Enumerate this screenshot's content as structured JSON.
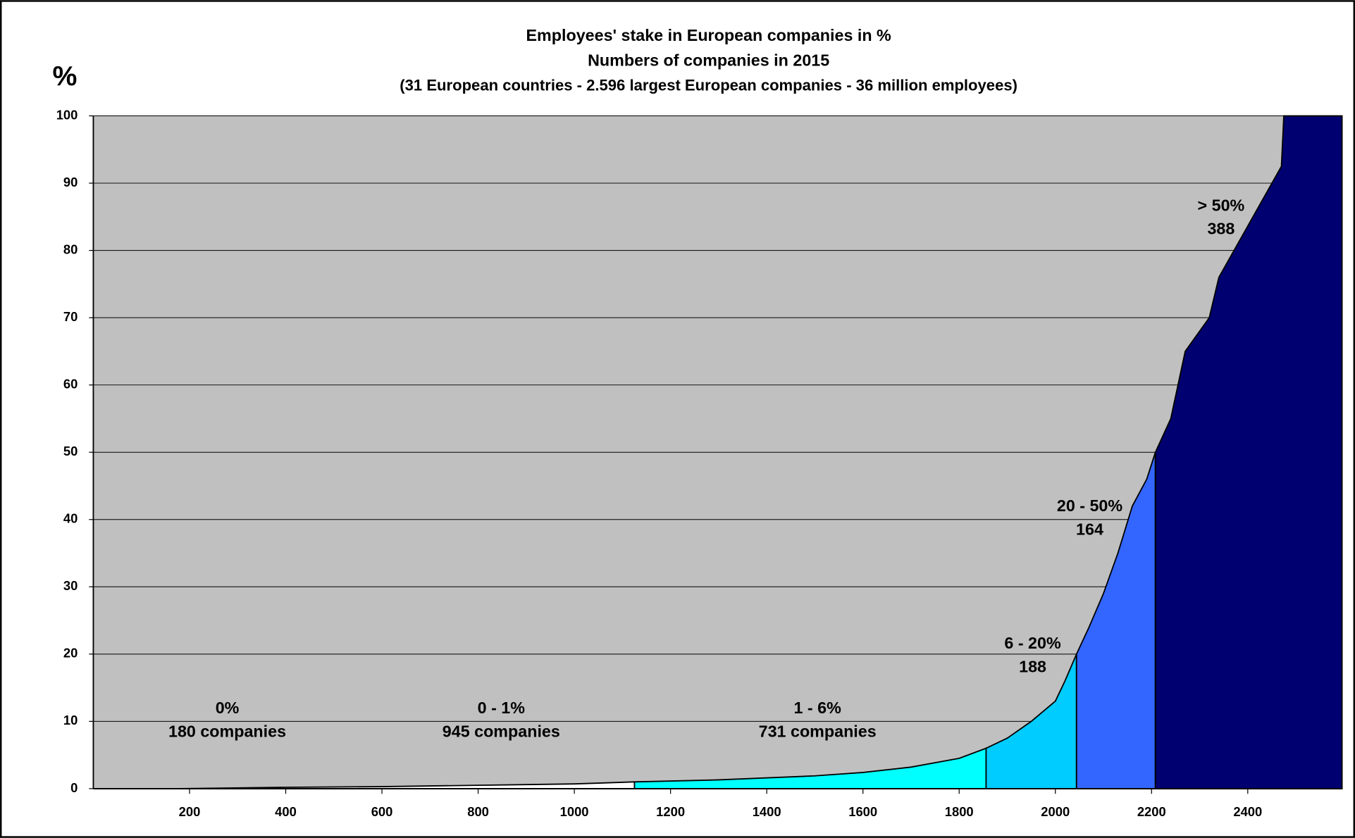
{
  "chart_data": {
    "type": "area",
    "title": "Employees' stake in European companies in %",
    "subtitle": "Numbers of companies in 2015",
    "subtitle2": "(31 European countries - 2.596 largest European companies - 36 million employees)",
    "y_label": "%",
    "xlim": [
      0,
      2596
    ],
    "ylim": [
      0,
      100
    ],
    "xticks": [
      200,
      400,
      600,
      800,
      1000,
      1200,
      1400,
      1600,
      1800,
      2000,
      2200,
      2400
    ],
    "yticks": [
      0,
      10,
      20,
      30,
      40,
      50,
      60,
      70,
      80,
      90,
      100
    ],
    "grid": true,
    "series": [
      {
        "color": "#ffffff",
        "x": [
          0,
          180
        ],
        "values": [
          0,
          0
        ]
      },
      {
        "color": "#ffffff",
        "x": [
          180,
          400,
          600,
          800,
          1000,
          1125
        ],
        "values": [
          0,
          0.2,
          0.3,
          0.5,
          0.7,
          1.0
        ]
      },
      {
        "color": "#00ffff",
        "x": [
          1125,
          1300,
          1500,
          1600,
          1700,
          1800,
          1856
        ],
        "values": [
          1.0,
          1.3,
          1.9,
          2.4,
          3.2,
          4.5,
          6
        ]
      },
      {
        "color": "#00ccff",
        "x": [
          1856,
          1900,
          1950,
          2000,
          2020,
          2044
        ],
        "values": [
          6,
          7.5,
          10,
          13,
          16,
          20
        ]
      },
      {
        "color": "#3366ff",
        "x": [
          2044,
          2070,
          2100,
          2130,
          2160,
          2190,
          2208
        ],
        "values": [
          20,
          24,
          29,
          35,
          42,
          46,
          50
        ]
      },
      {
        "color": "#000070",
        "x": [
          2208,
          2240,
          2270,
          2320,
          2340,
          2470,
          2475,
          2596
        ],
        "values": [
          50,
          55,
          65,
          70,
          76,
          92.5,
          100,
          100
        ]
      }
    ],
    "annotations": [
      [
        "0%",
        "180 companies"
      ],
      [
        "0  -  1%",
        "945 companies"
      ],
      [
        "1  -  6%",
        "731 companies"
      ],
      [
        "6  -  20%",
        "188"
      ],
      [
        "20 - 50%",
        "164"
      ],
      [
        "> 50%",
        "388"
      ]
    ]
  }
}
